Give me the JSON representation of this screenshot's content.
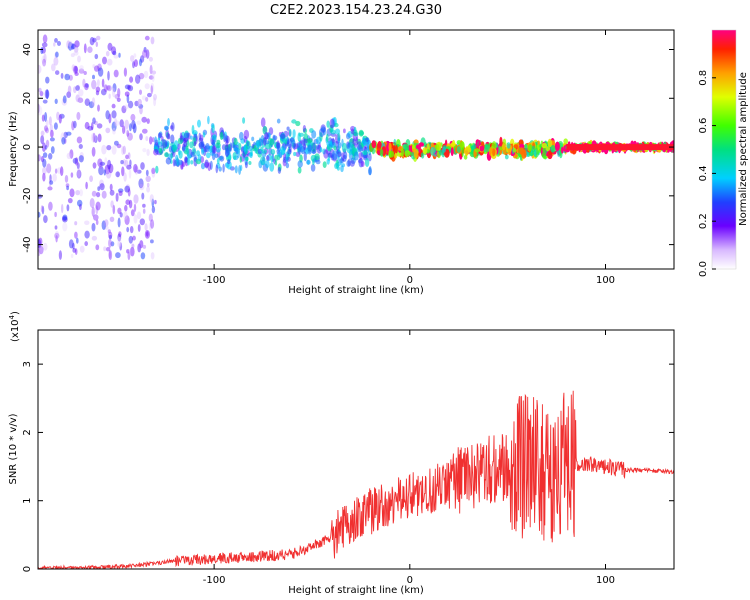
{
  "page": {
    "title": "C2E2.2023.154.23.24.G30"
  },
  "colors": {
    "snr_line": "#f03030",
    "axis": "#000000",
    "frame": "#000000"
  },
  "chart_data": [
    {
      "type": "heatmap",
      "title": "C2E2.2023.154.23.24.G30",
      "xlabel": "Height of straight line (km)",
      "ylabel": "Frequency (Hz)",
      "xlim": [
        -190,
        135
      ],
      "ylim": [
        -50,
        48
      ],
      "xticks": [
        -100,
        0,
        100
      ],
      "yticks": [
        -40,
        -20,
        0,
        20,
        40
      ],
      "colorbar": {
        "label": "Normalized spectral amplitude",
        "range": [
          0,
          1
        ],
        "ticks": [
          0.0,
          0.2,
          0.4,
          0.6,
          0.8
        ]
      },
      "features": [
        {
          "x_from": -190,
          "x_to": -130,
          "freq_spread": 45,
          "amplitude": 0.15,
          "note": "scattered"
        },
        {
          "x_from": -130,
          "x_to": -20,
          "center_freq": 0,
          "freq_spread": 10,
          "amplitude": 0.35
        },
        {
          "x_from": -20,
          "x_to": 80,
          "center_freq": -1,
          "freq_spread": 3,
          "amplitude": 0.75
        },
        {
          "x_from": 80,
          "x_to": 135,
          "center_freq": 0,
          "freq_spread": 1,
          "amplitude": 0.95
        }
      ]
    },
    {
      "type": "line",
      "xlabel": "Height of straight line (km)",
      "ylabel": "SNR (10 * v/v)",
      "yscale_label": "(x10",
      "yscale_exp": "4",
      "yscale_close": ")",
      "xlim": [
        -190,
        135
      ],
      "ylim": [
        0,
        3.5
      ],
      "xticks": [
        -100,
        0,
        100
      ],
      "yticks": [
        0,
        1,
        2,
        3
      ],
      "series": [
        {
          "x": [
            -190,
            -160,
            -140,
            -120,
            -100,
            -80,
            -60,
            -40,
            -30,
            -20,
            -10,
            0,
            10,
            20,
            30,
            40,
            50,
            55,
            60,
            65,
            70,
            75,
            80,
            90,
            100,
            110,
            120,
            135
          ],
          "y": [
            0.0,
            0.02,
            0.05,
            0.12,
            0.15,
            0.18,
            0.22,
            0.45,
            0.7,
            0.85,
            0.95,
            1.05,
            1.15,
            1.25,
            1.35,
            1.45,
            1.5,
            1.55,
            1.45,
            1.4,
            1.45,
            1.5,
            1.55,
            1.55,
            1.5,
            1.45,
            1.45,
            1.42
          ]
        }
      ]
    }
  ]
}
